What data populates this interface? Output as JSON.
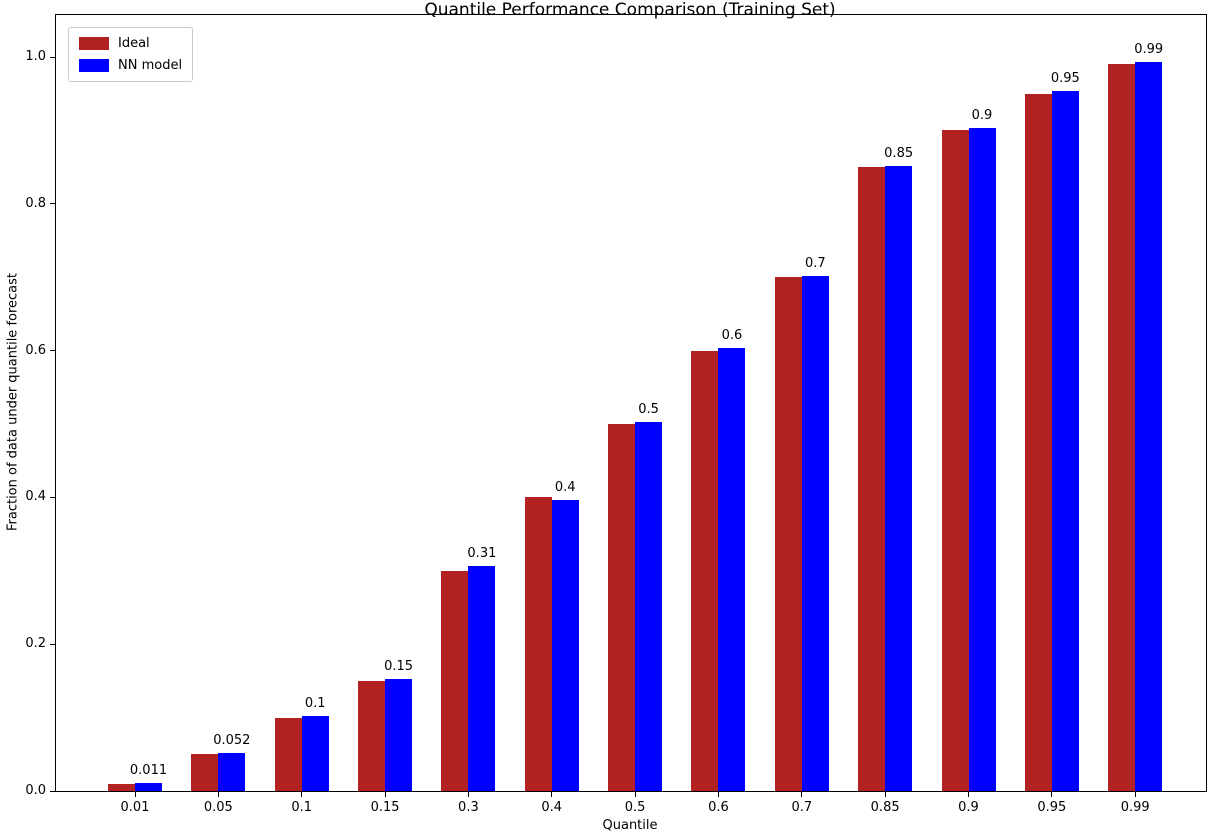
{
  "chart_data": {
    "type": "bar",
    "title": "Quantile Performance Comparison (Training Set)",
    "xlabel": "Quantile",
    "ylabel": "Fraction of data under quantile forecast",
    "categories": [
      "0.01",
      "0.05",
      "0.1",
      "0.15",
      "0.3",
      "0.4",
      "0.5",
      "0.6",
      "0.7",
      "0.85",
      "0.9",
      "0.95",
      "0.99"
    ],
    "series": [
      {
        "name": "Ideal",
        "color": "#b22222",
        "values": [
          0.01,
          0.05,
          0.1,
          0.15,
          0.3,
          0.4,
          0.5,
          0.6,
          0.7,
          0.85,
          0.9,
          0.95,
          0.99
        ]
      },
      {
        "name": "NN model",
        "color": "#0000ff",
        "values": [
          0.011,
          0.052,
          0.102,
          0.152,
          0.306,
          0.397,
          0.503,
          0.604,
          0.701,
          0.852,
          0.903,
          0.954,
          0.993
        ]
      }
    ],
    "bar_labels": [
      "0.011",
      "0.052",
      "0.1",
      "0.15",
      "0.31",
      "0.4",
      "0.5",
      "0.6",
      "0.7",
      "0.85",
      "0.9",
      "0.95",
      "0.99"
    ],
    "bar_labels_over_series": "NN model",
    "ytick_labels": [
      "0.0",
      "0.2",
      "0.4",
      "0.6",
      "0.8",
      "1.0"
    ],
    "yticks": [
      0.0,
      0.2,
      0.4,
      0.6,
      0.8,
      1.0
    ],
    "ylim": [
      0,
      1.057
    ],
    "grid": false,
    "legend_position": "upper left",
    "background_color": "#ffffff",
    "axis_color": "#000000"
  }
}
